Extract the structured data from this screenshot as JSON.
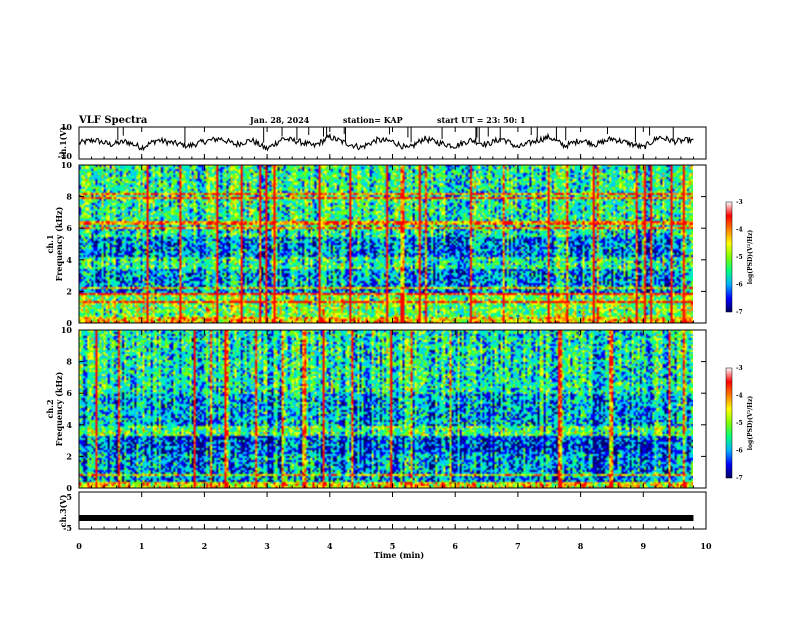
{
  "header": {
    "title": "VLF Spectra",
    "date": "Jan. 28, 2024",
    "station": "station= KAP",
    "start": "start  UT  =   23: 50: 1"
  },
  "colors": {
    "waveform": "#000000",
    "spectrogram_scale": [
      "#000080",
      "#0000ff",
      "#00c8ff",
      "#00ff80",
      "#ffff00",
      "#ff8000",
      "#ff0000",
      "#ffffff"
    ]
  },
  "chart_data": [
    {
      "type": "line",
      "panel": "ch1-waveform",
      "ylabel": "ch.1(V)",
      "ylim": [
        -10,
        10
      ],
      "ytick_labels": [
        "10",
        "-10"
      ],
      "xlim": [
        0,
        10
      ],
      "x": [
        0,
        0.25,
        0.5,
        0.75,
        1.0,
        1.25,
        1.5,
        1.75,
        2.0,
        2.25,
        2.5,
        2.75,
        3.0,
        3.25,
        3.5,
        3.75,
        4.0,
        4.25,
        4.5,
        4.75,
        5.0,
        5.25,
        5.5,
        5.75,
        6.0,
        6.25,
        6.5,
        6.75,
        7.0,
        7.25,
        7.5,
        7.75,
        8.0,
        8.25,
        8.5,
        8.75,
        9.0,
        9.25,
        9.5,
        9.75,
        9.8
      ],
      "y": [
        0,
        2,
        -1,
        1,
        -3,
        2,
        0,
        -2,
        1,
        3,
        -1,
        2,
        -4,
        3,
        1,
        -2,
        4,
        0,
        -3,
        2,
        1,
        -4,
        3,
        0,
        -2,
        2,
        -1,
        3,
        -3,
        1,
        4,
        -2,
        2,
        -1,
        3,
        0,
        -3,
        4,
        1,
        2,
        1
      ]
    },
    {
      "type": "heatmap",
      "panel": "ch1-spectrogram",
      "ylabel": "ch.1\nFrequency (kHz)",
      "xlim": [
        0,
        10
      ],
      "ylim": [
        0,
        10
      ],
      "ytick_labels": [
        "0",
        "2",
        "4",
        "6",
        "8",
        "10"
      ],
      "colorbar": {
        "label": "log(PSD)(V²/Hz)",
        "range": [
          -7,
          -3
        ],
        "tick_labels": [
          "-3",
          "-4",
          "-5",
          "-6",
          "-7"
        ]
      }
    },
    {
      "type": "heatmap",
      "panel": "ch2-spectrogram",
      "ylabel": "ch.2\nFrequency (kHz)",
      "xlim": [
        0,
        10
      ],
      "ylim": [
        0,
        10
      ],
      "ytick_labels": [
        "0",
        "2",
        "4",
        "6",
        "8",
        "10"
      ],
      "colorbar": {
        "label": "log(PSD)(V²/Hz)",
        "range": [
          -7,
          -3
        ],
        "tick_labels": [
          "-3",
          "-4",
          "-5",
          "-6",
          "-7"
        ]
      }
    },
    {
      "type": "line",
      "panel": "ch3-waveform",
      "ylabel": "ch.3(V)",
      "ylim": [
        -5,
        5
      ],
      "ytick_labels": [
        "5",
        "-5"
      ],
      "xlim": [
        0,
        10
      ],
      "x": [
        0,
        9.8
      ],
      "y": [
        -2.5,
        -2.5
      ]
    }
  ],
  "xaxis": {
    "label": "Time  (min)",
    "tick_labels": [
      "0",
      "1",
      "2",
      "3",
      "4",
      "5",
      "6",
      "7",
      "8",
      "9",
      "10"
    ]
  }
}
